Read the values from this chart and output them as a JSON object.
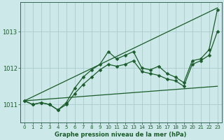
{
  "title": "Graphe pression niveau de la mer (hPa)",
  "bg_color": "#cce8e8",
  "grid_color": "#aacccc",
  "line_color": "#1a5c2a",
  "xlim": [
    -0.5,
    23.5
  ],
  "ylim": [
    1010.5,
    1013.8
  ],
  "yticks": [
    1011,
    1012,
    1013
  ],
  "xticks": [
    0,
    1,
    2,
    3,
    4,
    5,
    6,
    7,
    8,
    9,
    10,
    11,
    12,
    13,
    14,
    15,
    16,
    17,
    18,
    19,
    20,
    21,
    22,
    23
  ],
  "series": [
    {
      "x": [
        0,
        1,
        2,
        3,
        4,
        5,
        6,
        7,
        8,
        9,
        10,
        11,
        12,
        13,
        14,
        15,
        16,
        17,
        18,
        19,
        20,
        21,
        22,
        23
      ],
      "y": [
        1011.1,
        1011.0,
        1011.05,
        1011.0,
        1010.85,
        1011.05,
        1011.45,
        1011.75,
        1011.95,
        1012.1,
        1012.45,
        1012.25,
        1012.35,
        1012.45,
        1012.0,
        1011.95,
        1012.05,
        1011.85,
        1011.75,
        1011.6,
        1012.2,
        1012.25,
        1012.5,
        1013.6
      ],
      "marker": "D",
      "markersize": 2.5,
      "linewidth": 0.9
    },
    {
      "x": [
        0,
        1,
        2,
        3,
        4,
        5,
        6,
        7,
        8,
        9,
        10,
        11,
        12,
        13,
        14,
        15,
        16,
        17,
        18,
        19,
        20,
        21,
        22,
        23
      ],
      "y": [
        1011.1,
        1011.0,
        1011.05,
        1011.0,
        1010.85,
        1011.0,
        1011.3,
        1011.55,
        1011.75,
        1011.95,
        1012.1,
        1012.05,
        1012.1,
        1012.2,
        1011.9,
        1011.85,
        1011.8,
        1011.7,
        1011.65,
        1011.5,
        1012.1,
        1012.2,
        1012.35,
        1013.0
      ],
      "marker": "D",
      "markersize": 2.5,
      "linewidth": 0.9
    },
    {
      "x": [
        0,
        23
      ],
      "y": [
        1011.1,
        1013.65
      ],
      "marker": null,
      "markersize": 0,
      "linewidth": 0.9
    },
    {
      "x": [
        0,
        23
      ],
      "y": [
        1011.1,
        1011.5
      ],
      "marker": null,
      "markersize": 0,
      "linewidth": 0.9
    }
  ]
}
